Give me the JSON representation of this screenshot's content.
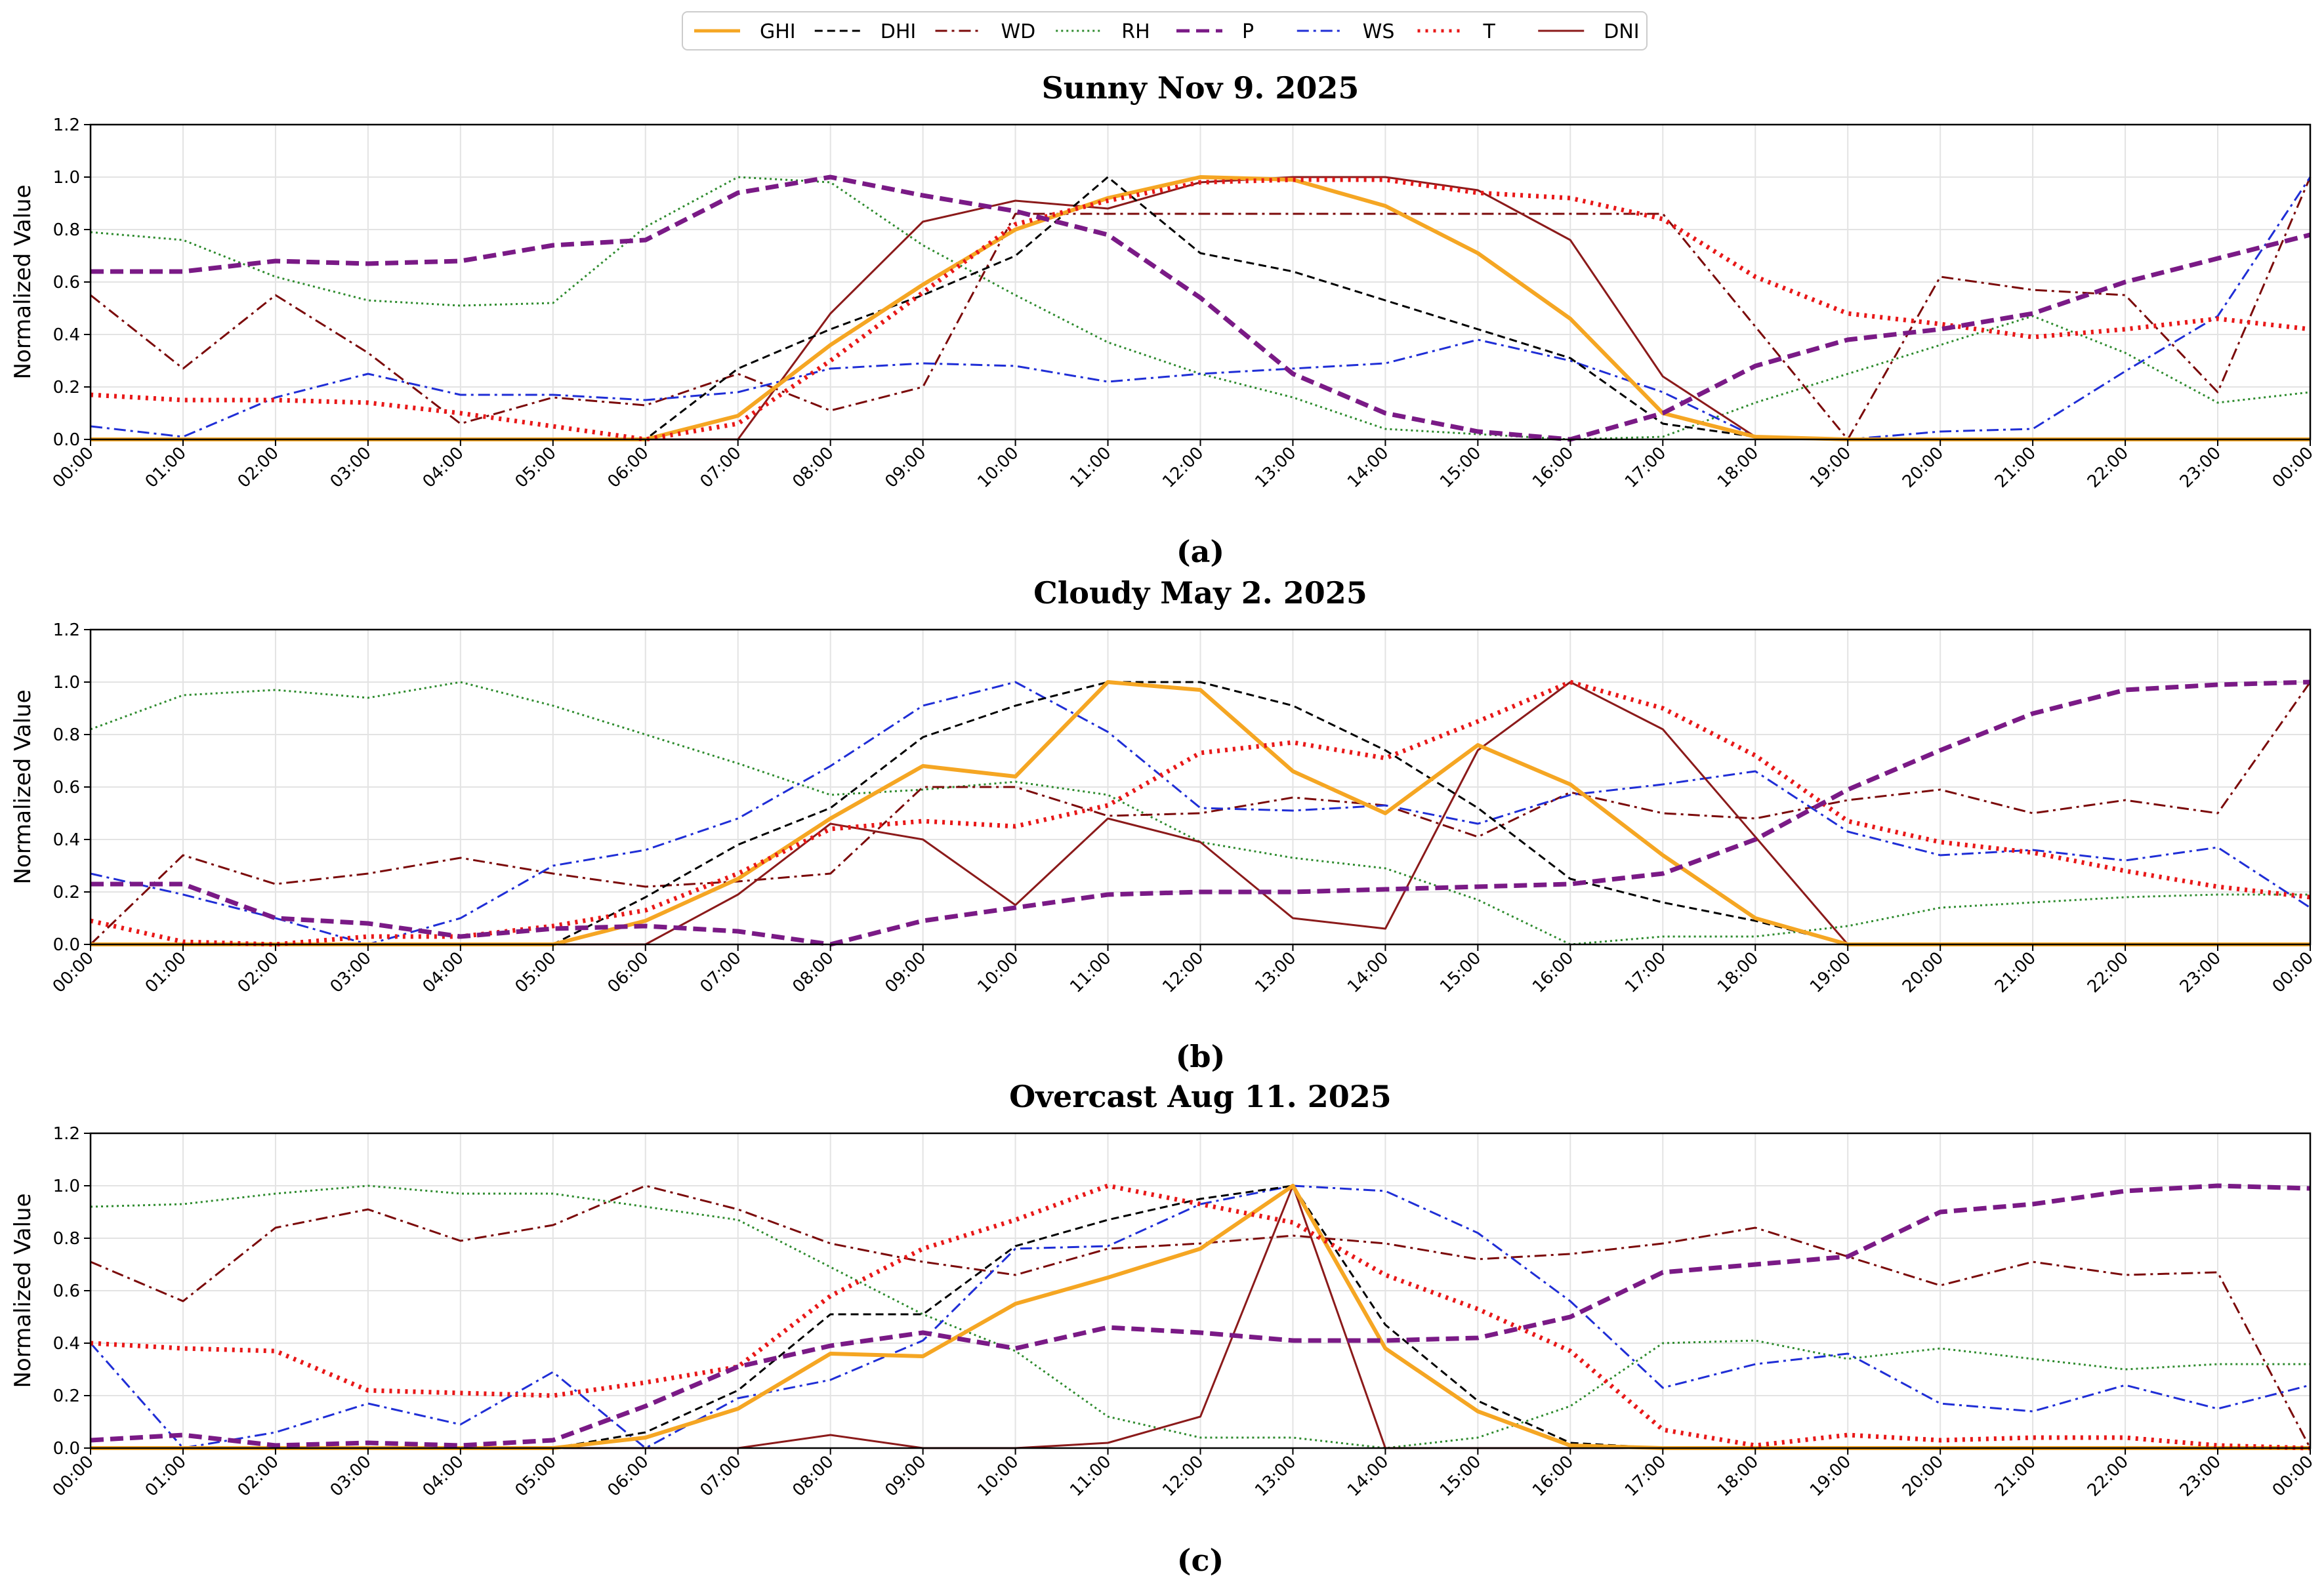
{
  "legend": [
    "GHI",
    "DHI",
    "WD",
    "RH",
    "P",
    "WS",
    "T",
    "DNI"
  ],
  "styles": {
    "GHI": {
      "color": "#F5A623",
      "dash": "",
      "width": 6
    },
    "DHI": {
      "color": "#000000",
      "dash": "12,7",
      "width": 3
    },
    "WD": {
      "color": "#7B0A0A",
      "dash": "18,7,4,7",
      "width": 3
    },
    "RH": {
      "color": "#2E8B2E",
      "dash": "3,5",
      "width": 3
    },
    "P": {
      "color": "#7A1A86",
      "dash": "20,10",
      "width": 7
    },
    "WS": {
      "color": "#1F2ED6",
      "dash": "18,7,4,7",
      "width": 3
    },
    "T": {
      "color": "#E81818",
      "dash": "4,8",
      "width": 7
    },
    "DNI": {
      "color": "#8B1A1A",
      "dash": "",
      "width": 3
    }
  },
  "chart_data": [
    {
      "type": "line",
      "title": "Sunny Nov 9. 2025",
      "panel_label": "(a)",
      "ylabel": "Normalized Value",
      "ylim": [
        0,
        1.2
      ],
      "yticks": [
        "0.0",
        "0.2",
        "0.4",
        "0.6",
        "0.8",
        "1.0",
        "1.2"
      ],
      "x": [
        "00:00",
        "01:00",
        "02:00",
        "03:00",
        "04:00",
        "05:00",
        "06:00",
        "07:00",
        "08:00",
        "09:00",
        "10:00",
        "11:00",
        "12:00",
        "13:00",
        "14:00",
        "15:00",
        "16:00",
        "17:00",
        "18:00",
        "19:00",
        "20:00",
        "21:00",
        "22:00",
        "23:00",
        "00:00"
      ],
      "series": [
        {
          "name": "RH",
          "values": [
            0.79,
            0.76,
            0.62,
            0.53,
            0.51,
            0.52,
            0.81,
            1.0,
            0.98,
            0.74,
            0.55,
            0.37,
            0.25,
            0.16,
            0.04,
            0.02,
            0.0,
            0.01,
            0.14,
            0.25,
            0.36,
            0.47,
            0.33,
            0.14,
            0.18
          ]
        },
        {
          "name": "WD",
          "values": [
            0.55,
            0.27,
            0.55,
            0.33,
            0.06,
            0.16,
            0.13,
            0.25,
            0.11,
            0.2,
            0.86,
            0.86,
            0.86,
            0.86,
            0.86,
            0.86,
            0.86,
            0.86,
            0.43,
            0.0,
            0.62,
            0.57,
            0.55,
            0.18,
            1.0
          ]
        },
        {
          "name": "WS",
          "values": [
            0.05,
            0.01,
            0.16,
            0.25,
            0.17,
            0.17,
            0.15,
            0.18,
            0.27,
            0.29,
            0.28,
            0.22,
            0.25,
            0.27,
            0.29,
            0.38,
            0.3,
            0.18,
            0.01,
            0.0,
            0.03,
            0.04,
            0.26,
            0.47,
            1.0
          ]
        },
        {
          "name": "DNI",
          "values": [
            0.0,
            0.0,
            0.0,
            0.0,
            0.0,
            0.0,
            0.0,
            0.0,
            0.48,
            0.83,
            0.91,
            0.88,
            0.98,
            1.0,
            1.0,
            0.95,
            0.76,
            0.24,
            0.01,
            0.0,
            0.0,
            0.0,
            0.0,
            0.0,
            0.0
          ]
        },
        {
          "name": "DHI",
          "values": [
            0.0,
            0.0,
            0.0,
            0.0,
            0.0,
            0.0,
            0.0,
            0.27,
            0.42,
            0.55,
            0.7,
            1.0,
            0.71,
            0.64,
            0.53,
            0.42,
            0.31,
            0.06,
            0.01,
            0.0,
            0.0,
            0.0,
            0.0,
            0.0,
            0.0
          ]
        },
        {
          "name": "GHI",
          "values": [
            0.0,
            0.0,
            0.0,
            0.0,
            0.0,
            0.0,
            0.0,
            0.09,
            0.36,
            0.59,
            0.8,
            0.92,
            1.0,
            0.99,
            0.89,
            0.71,
            0.46,
            0.1,
            0.01,
            0.0,
            0.0,
            0.0,
            0.0,
            0.0,
            0.0
          ]
        },
        {
          "name": "T",
          "values": [
            0.17,
            0.15,
            0.15,
            0.14,
            0.1,
            0.05,
            0.0,
            0.06,
            0.3,
            0.56,
            0.82,
            0.91,
            0.98,
            0.99,
            0.99,
            0.94,
            0.92,
            0.84,
            0.62,
            0.48,
            0.44,
            0.39,
            0.42,
            0.46,
            0.42
          ]
        },
        {
          "name": "P",
          "values": [
            0.64,
            0.64,
            0.68,
            0.67,
            0.68,
            0.74,
            0.76,
            0.94,
            1.0,
            0.93,
            0.87,
            0.78,
            0.54,
            0.25,
            0.1,
            0.03,
            0.0,
            0.1,
            0.28,
            0.38,
            0.42,
            0.48,
            0.6,
            0.69,
            0.78
          ]
        }
      ]
    },
    {
      "type": "line",
      "title": "Cloudy May 2. 2025",
      "panel_label": "(b)",
      "ylabel": "Normalized Value",
      "ylim": [
        0,
        1.2
      ],
      "yticks": [
        "0.0",
        "0.2",
        "0.4",
        "0.6",
        "0.8",
        "1.0",
        "1.2"
      ],
      "x": [
        "00:00",
        "01:00",
        "02:00",
        "03:00",
        "04:00",
        "05:00",
        "06:00",
        "07:00",
        "08:00",
        "09:00",
        "10:00",
        "11:00",
        "12:00",
        "13:00",
        "14:00",
        "15:00",
        "16:00",
        "17:00",
        "18:00",
        "19:00",
        "20:00",
        "21:00",
        "22:00",
        "23:00",
        "00:00"
      ],
      "series": [
        {
          "name": "RH",
          "values": [
            0.82,
            0.95,
            0.97,
            0.94,
            1.0,
            0.91,
            0.8,
            0.69,
            0.57,
            0.59,
            0.62,
            0.57,
            0.39,
            0.33,
            0.29,
            0.17,
            0.0,
            0.03,
            0.03,
            0.07,
            0.14,
            0.16,
            0.18,
            0.19,
            0.19
          ]
        },
        {
          "name": "WD",
          "values": [
            0.0,
            0.34,
            0.23,
            0.27,
            0.33,
            0.27,
            0.22,
            0.24,
            0.27,
            0.6,
            0.6,
            0.49,
            0.5,
            0.56,
            0.53,
            0.41,
            0.58,
            0.5,
            0.48,
            0.55,
            0.59,
            0.5,
            0.55,
            0.5,
            1.0
          ]
        },
        {
          "name": "WS",
          "values": [
            0.27,
            0.19,
            0.1,
            0.0,
            0.1,
            0.3,
            0.36,
            0.48,
            0.68,
            0.91,
            1.0,
            0.81,
            0.52,
            0.51,
            0.53,
            0.46,
            0.57,
            0.61,
            0.66,
            0.43,
            0.34,
            0.36,
            0.32,
            0.37,
            0.14
          ]
        },
        {
          "name": "DNI",
          "values": [
            0.0,
            0.0,
            0.0,
            0.0,
            0.0,
            0.0,
            0.0,
            0.19,
            0.46,
            0.4,
            0.15,
            0.48,
            0.39,
            0.1,
            0.06,
            0.74,
            1.0,
            0.82,
            0.41,
            0.0,
            0.0,
            0.0,
            0.0,
            0.0,
            0.0
          ]
        },
        {
          "name": "DHI",
          "values": [
            0.0,
            0.0,
            0.0,
            0.0,
            0.0,
            0.0,
            0.18,
            0.38,
            0.52,
            0.79,
            0.91,
            1.0,
            1.0,
            0.91,
            0.74,
            0.52,
            0.25,
            0.16,
            0.09,
            0.0,
            0.0,
            0.0,
            0.0,
            0.0,
            0.0
          ]
        },
        {
          "name": "GHI",
          "values": [
            0.0,
            0.0,
            0.0,
            0.0,
            0.0,
            0.0,
            0.09,
            0.25,
            0.48,
            0.68,
            0.64,
            1.0,
            0.97,
            0.66,
            0.5,
            0.76,
            0.61,
            0.34,
            0.1,
            0.0,
            0.0,
            0.0,
            0.0,
            0.0,
            0.0
          ]
        },
        {
          "name": "T",
          "values": [
            0.09,
            0.01,
            0.0,
            0.03,
            0.03,
            0.07,
            0.13,
            0.27,
            0.44,
            0.47,
            0.45,
            0.53,
            0.73,
            0.77,
            0.71,
            0.85,
            1.0,
            0.9,
            0.72,
            0.47,
            0.39,
            0.35,
            0.28,
            0.22,
            0.18
          ]
        },
        {
          "name": "P",
          "values": [
            0.23,
            0.23,
            0.1,
            0.08,
            0.03,
            0.06,
            0.07,
            0.05,
            0.0,
            0.09,
            0.14,
            0.19,
            0.2,
            0.2,
            0.21,
            0.22,
            0.23,
            0.27,
            0.4,
            0.59,
            0.74,
            0.88,
            0.97,
            0.99,
            1.0
          ]
        }
      ]
    },
    {
      "type": "line",
      "title": "Overcast Aug 11. 2025",
      "panel_label": "(c)",
      "ylabel": "Normalized Value",
      "ylim": [
        0,
        1.2
      ],
      "yticks": [
        "0.0",
        "0.2",
        "0.4",
        "0.6",
        "0.8",
        "1.0",
        "1.2"
      ],
      "x": [
        "00:00",
        "01:00",
        "02:00",
        "03:00",
        "04:00",
        "05:00",
        "06:00",
        "07:00",
        "08:00",
        "09:00",
        "10:00",
        "11:00",
        "12:00",
        "13:00",
        "14:00",
        "15:00",
        "16:00",
        "17:00",
        "18:00",
        "19:00",
        "20:00",
        "21:00",
        "22:00",
        "23:00",
        "00:00"
      ],
      "series": [
        {
          "name": "RH",
          "values": [
            0.92,
            0.93,
            0.97,
            1.0,
            0.97,
            0.97,
            0.92,
            0.87,
            0.69,
            0.51,
            0.37,
            0.12,
            0.04,
            0.04,
            0.0,
            0.04,
            0.16,
            0.4,
            0.41,
            0.34,
            0.38,
            0.34,
            0.3,
            0.32,
            0.32
          ]
        },
        {
          "name": "WD",
          "values": [
            0.71,
            0.56,
            0.84,
            0.91,
            0.79,
            0.85,
            1.0,
            0.91,
            0.78,
            0.71,
            0.66,
            0.76,
            0.78,
            0.81,
            0.78,
            0.72,
            0.74,
            0.78,
            0.84,
            0.73,
            0.62,
            0.71,
            0.66,
            0.67,
            0.0
          ]
        },
        {
          "name": "WS",
          "values": [
            0.4,
            0.0,
            0.06,
            0.17,
            0.09,
            0.29,
            0.0,
            0.19,
            0.26,
            0.41,
            0.76,
            0.77,
            0.93,
            1.0,
            0.98,
            0.82,
            0.56,
            0.23,
            0.32,
            0.36,
            0.17,
            0.14,
            0.24,
            0.15,
            0.24
          ]
        },
        {
          "name": "DNI",
          "values": [
            0.0,
            0.0,
            0.0,
            0.0,
            0.0,
            0.0,
            0.0,
            0.0,
            0.05,
            0.0,
            0.0,
            0.02,
            0.12,
            1.0,
            0.0,
            0.0,
            0.0,
            0.0,
            0.0,
            0.0,
            0.0,
            0.0,
            0.0,
            0.0,
            0.0
          ]
        },
        {
          "name": "DHI",
          "values": [
            0.0,
            0.0,
            0.0,
            0.0,
            0.0,
            0.0,
            0.06,
            0.22,
            0.51,
            0.51,
            0.77,
            0.87,
            0.95,
            1.0,
            0.47,
            0.18,
            0.02,
            0.0,
            0.0,
            0.0,
            0.0,
            0.0,
            0.0,
            0.0,
            0.0
          ]
        },
        {
          "name": "GHI",
          "values": [
            0.0,
            0.0,
            0.0,
            0.0,
            0.0,
            0.0,
            0.04,
            0.15,
            0.36,
            0.35,
            0.55,
            0.65,
            0.76,
            1.0,
            0.38,
            0.14,
            0.01,
            0.0,
            0.0,
            0.0,
            0.0,
            0.0,
            0.0,
            0.0,
            0.0
          ]
        },
        {
          "name": "T",
          "values": [
            0.4,
            0.38,
            0.37,
            0.22,
            0.21,
            0.2,
            0.25,
            0.31,
            0.58,
            0.76,
            0.87,
            1.0,
            0.93,
            0.86,
            0.66,
            0.53,
            0.37,
            0.07,
            0.01,
            0.05,
            0.03,
            0.04,
            0.04,
            0.01,
            0.0
          ]
        },
        {
          "name": "P",
          "values": [
            0.03,
            0.05,
            0.01,
            0.02,
            0.01,
            0.03,
            0.16,
            0.31,
            0.39,
            0.44,
            0.38,
            0.46,
            0.44,
            0.41,
            0.41,
            0.42,
            0.5,
            0.67,
            0.7,
            0.73,
            0.9,
            0.93,
            0.98,
            1.0,
            0.99
          ]
        }
      ]
    }
  ]
}
